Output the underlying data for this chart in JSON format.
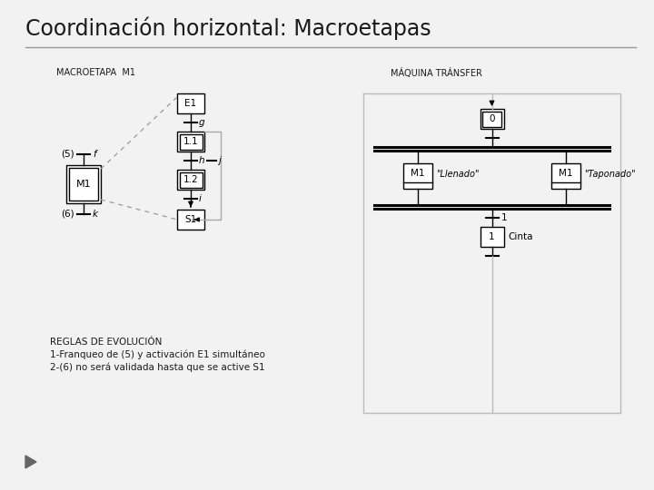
{
  "title": "Coordinación horizontal: Macroetapas",
  "bg_color": "#f2f2f2",
  "label_macroetapa": "MACROETAPA  M1",
  "label_maquina": "MÁQUINA TRÁNSFER",
  "reglas_title": "REGLAS DE EVOLUCIÓN",
  "reglas_line1": "1-Franqueo de (5) y activación E1 simultáneo",
  "reglas_line2": "2-(6) no será validada hasta que se active S1"
}
